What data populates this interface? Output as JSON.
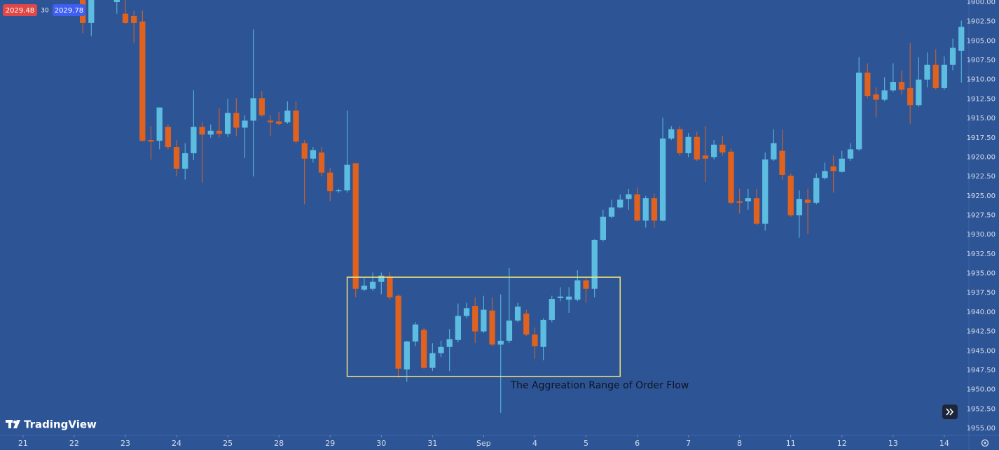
{
  "chart_data": {
    "type": "candlestick",
    "badges": {
      "bid": "2029.48",
      "spread": "30",
      "ask": "2029.78"
    },
    "brand": "TradingView",
    "y_inverted": true,
    "up_color": "#e0621e",
    "down_color": "#5cbde0",
    "xlim": [
      -2.7,
      110.8
    ],
    "ylim": [
      1900,
      1955
    ],
    "xticks": [
      {
        "value": 0,
        "label": "21"
      },
      {
        "value": 6,
        "label": "22"
      },
      {
        "value": 12,
        "label": "23"
      },
      {
        "value": 18,
        "label": "24"
      },
      {
        "value": 24,
        "label": "25"
      },
      {
        "value": 30,
        "label": "28"
      },
      {
        "value": 36,
        "label": "29"
      },
      {
        "value": 42,
        "label": "30"
      },
      {
        "value": 48,
        "label": "31"
      },
      {
        "value": 54,
        "label": "Sep"
      },
      {
        "value": 60,
        "label": "4"
      },
      {
        "value": 66,
        "label": "5"
      },
      {
        "value": 72,
        "label": "6"
      },
      {
        "value": 78,
        "label": "7"
      },
      {
        "value": 84,
        "label": "8"
      },
      {
        "value": 90,
        "label": "11"
      },
      {
        "value": 96,
        "label": "12"
      },
      {
        "value": 102,
        "label": "13"
      },
      {
        "value": 108,
        "label": "14"
      }
    ],
    "yticks": [
      {
        "value": 1900,
        "label": "1900.00"
      },
      {
        "value": 1902.5,
        "label": "1902.50"
      },
      {
        "value": 1905,
        "label": "1905.00"
      },
      {
        "value": 1907.5,
        "label": "1907.50"
      },
      {
        "value": 1910,
        "label": "1910.00"
      },
      {
        "value": 1912.5,
        "label": "1912.50"
      },
      {
        "value": 1915,
        "label": "1915.00"
      },
      {
        "value": 1917.5,
        "label": "1917.50"
      },
      {
        "value": 1920,
        "label": "1920.00"
      },
      {
        "value": 1922.5,
        "label": "1922.50"
      },
      {
        "value": 1925,
        "label": "1925.00"
      },
      {
        "value": 1927.5,
        "label": "1927.50"
      },
      {
        "value": 1930,
        "label": "1930.00"
      },
      {
        "value": 1932.5,
        "label": "1932.50"
      },
      {
        "value": 1935,
        "label": "1935.00"
      },
      {
        "value": 1937.5,
        "label": "1937.50"
      },
      {
        "value": 1940,
        "label": "1940.00"
      },
      {
        "value": 1942.5,
        "label": "1942.50"
      },
      {
        "value": 1945,
        "label": "1945.00"
      },
      {
        "value": 1947.5,
        "label": "1947.50"
      },
      {
        "value": 1950,
        "label": "1950.00"
      },
      {
        "value": 1952.5,
        "label": "1952.50"
      },
      {
        "value": 1955,
        "label": "1955.00"
      }
    ],
    "highlight": {
      "xlim": [
        38,
        70
      ],
      "ylim": [
        1935.5,
        1948.3
      ],
      "color": "#f2e47a",
      "label": "The Aggreation Range of Order Flow"
    },
    "x": [
      7,
      8,
      11,
      12,
      13,
      14,
      15,
      16,
      17,
      18,
      19,
      20,
      21,
      22,
      23,
      24,
      25,
      26,
      27,
      28,
      29,
      30,
      31,
      32,
      33,
      34,
      35,
      36,
      37,
      38,
      39,
      40,
      41,
      42,
      43,
      44,
      45,
      46,
      47,
      48,
      49,
      50,
      51,
      52,
      53,
      54,
      55,
      56,
      57,
      58,
      59,
      60,
      61,
      62,
      63,
      64,
      65,
      66,
      67,
      68,
      69,
      70,
      71,
      72,
      73,
      74,
      75,
      76,
      77,
      78,
      79,
      80,
      81,
      82,
      83,
      84,
      85,
      86,
      87,
      88,
      89,
      90,
      91,
      92,
      93,
      94,
      95,
      96,
      97,
      98,
      99,
      100,
      101,
      102,
      103,
      104,
      105,
      106,
      107,
      108,
      109,
      110
    ],
    "ohlc": [
      [
        1899.7,
        1904.0,
        1899.5,
        1902.7
      ],
      [
        1902.7,
        1904.4,
        1899.5,
        1899.7
      ],
      [
        1900.0,
        1901.5,
        1899.5,
        1899.7
      ],
      [
        1901.5,
        1902.8,
        1899.5,
        1902.7
      ],
      [
        1901.8,
        1905.3,
        1901.1,
        1902.7
      ],
      [
        1902.5,
        1918.0,
        1901.1,
        1917.9
      ],
      [
        1917.8,
        1920.3,
        1916.0,
        1918.0
      ],
      [
        1917.9,
        1919.0,
        1913.6,
        1913.6
      ],
      [
        1916.1,
        1919.0,
        1915.8,
        1918.7
      ],
      [
        1918.7,
        1922.5,
        1917.8,
        1921.5
      ],
      [
        1921.5,
        1922.9,
        1918.2,
        1919.5
      ],
      [
        1919.5,
        1920.4,
        1911.4,
        1916.1
      ],
      [
        1916.1,
        1923.3,
        1915.5,
        1917.1
      ],
      [
        1917.1,
        1917.5,
        1915.8,
        1916.6
      ],
      [
        1916.6,
        1917.5,
        1913.7,
        1917.0
      ],
      [
        1917.0,
        1917.4,
        1912.5,
        1914.3
      ],
      [
        1914.3,
        1917.3,
        1912.4,
        1916.2
      ],
      [
        1916.2,
        1920.1,
        1914.6,
        1915.3
      ],
      [
        1915.3,
        1922.5,
        1903.5,
        1912.4
      ],
      [
        1912.4,
        1914.8,
        1911.5,
        1914.6
      ],
      [
        1915.3,
        1917.3,
        1914.6,
        1915.5
      ],
      [
        1915.4,
        1915.9,
        1914.2,
        1915.7
      ],
      [
        1915.5,
        1915.7,
        1912.8,
        1914.0
      ],
      [
        1914.0,
        1918.2,
        1912.8,
        1918.0
      ],
      [
        1918.2,
        1926.1,
        1917.8,
        1920.2
      ],
      [
        1920.2,
        1920.7,
        1918.7,
        1919.1
      ],
      [
        1919.4,
        1922.5,
        1918.7,
        1922.0
      ],
      [
        1922.0,
        1925.7,
        1921.4,
        1924.4
      ],
      [
        1924.4,
        1924.6,
        1924.1,
        1924.3
      ],
      [
        1924.3,
        1924.6,
        1914.0,
        1921.0
      ],
      [
        1920.8,
        1938.1,
        1920.8,
        1937.0
      ],
      [
        1937.1,
        1937.3,
        1935.6,
        1936.6
      ],
      [
        1937.0,
        1937.3,
        1934.9,
        1936.1
      ],
      [
        1936.1,
        1937.7,
        1934.9,
        1935.3
      ],
      [
        1935.4,
        1938.4,
        1934.8,
        1938.1
      ],
      [
        1937.9,
        1948.5,
        1937.7,
        1947.3
      ],
      [
        1947.4,
        1949.0,
        1943.7,
        1943.8
      ],
      [
        1943.8,
        1944.4,
        1941.3,
        1941.6
      ],
      [
        1942.3,
        1947.3,
        1942.0,
        1947.2
      ],
      [
        1947.2,
        1947.6,
        1944.0,
        1945.3
      ],
      [
        1945.3,
        1945.8,
        1943.7,
        1944.5
      ],
      [
        1944.5,
        1947.6,
        1942.2,
        1943.5
      ],
      [
        1943.6,
        1943.9,
        1938.9,
        1940.5
      ],
      [
        1940.5,
        1940.8,
        1938.8,
        1939.5
      ],
      [
        1939.2,
        1944.0,
        1938.1,
        1942.5
      ],
      [
        1942.5,
        1942.7,
        1937.9,
        1939.7
      ],
      [
        1939.8,
        1944.4,
        1938.1,
        1944.2
      ],
      [
        1944.2,
        1953.0,
        1937.7,
        1943.7
      ],
      [
        1943.7,
        1944.0,
        1934.3,
        1941.1
      ],
      [
        1941.1,
        1941.3,
        1938.8,
        1939.3
      ],
      [
        1940.2,
        1943.1,
        1939.7,
        1942.9
      ],
      [
        1942.9,
        1946.0,
        1942.0,
        1944.4
      ],
      [
        1944.5,
        1946.2,
        1940.8,
        1941.0
      ],
      [
        1941.0,
        1941.3,
        1937.9,
        1938.3
      ],
      [
        1938.2,
        1938.6,
        1936.8,
        1938.0
      ],
      [
        1938.4,
        1940.1,
        1936.8,
        1938.0
      ],
      [
        1938.4,
        1938.6,
        1934.6,
        1935.9
      ],
      [
        1935.9,
        1938.8,
        1935.5,
        1937.0
      ],
      [
        1937.0,
        1938.1,
        1930.6,
        1930.7
      ],
      [
        1930.7,
        1930.9,
        1926.8,
        1927.7
      ],
      [
        1927.7,
        1927.9,
        1925.5,
        1926.5
      ],
      [
        1926.5,
        1926.6,
        1924.8,
        1925.5
      ],
      [
        1925.4,
        1926.8,
        1924.1,
        1924.8
      ],
      [
        1924.8,
        1928.3,
        1923.9,
        1928.2
      ],
      [
        1928.2,
        1929.1,
        1925.0,
        1925.3
      ],
      [
        1925.3,
        1929.1,
        1924.7,
        1928.2
      ],
      [
        1928.2,
        1928.3,
        1914.9,
        1917.6
      ],
      [
        1917.6,
        1917.8,
        1916.0,
        1916.4
      ],
      [
        1916.4,
        1919.8,
        1916.0,
        1919.5
      ],
      [
        1919.5,
        1920.0,
        1916.9,
        1917.4
      ],
      [
        1917.4,
        1920.5,
        1916.7,
        1920.3
      ],
      [
        1919.8,
        1923.2,
        1916.0,
        1920.2
      ],
      [
        1920.0,
        1920.3,
        1917.8,
        1918.4
      ],
      [
        1918.4,
        1919.8,
        1917.3,
        1919.4
      ],
      [
        1919.3,
        1926.1,
        1918.9,
        1925.9
      ],
      [
        1925.7,
        1927.3,
        1924.1,
        1925.9
      ],
      [
        1925.7,
        1926.8,
        1924.1,
        1925.3
      ],
      [
        1925.3,
        1928.8,
        1924.1,
        1928.6
      ],
      [
        1928.6,
        1929.5,
        1919.4,
        1920.3
      ],
      [
        1920.3,
        1920.5,
        1916.4,
        1918.2
      ],
      [
        1919.2,
        1922.9,
        1916.5,
        1922.3
      ],
      [
        1922.4,
        1927.7,
        1922.1,
        1927.5
      ],
      [
        1927.5,
        1930.4,
        1924.3,
        1925.4
      ],
      [
        1925.5,
        1929.9,
        1924.1,
        1925.9
      ],
      [
        1925.9,
        1926.1,
        1922.1,
        1922.7
      ],
      [
        1922.7,
        1922.9,
        1920.7,
        1921.8
      ],
      [
        1921.2,
        1924.6,
        1919.8,
        1921.8
      ],
      [
        1921.9,
        1922.0,
        1919.2,
        1920.2
      ],
      [
        1920.2,
        1920.5,
        1918.2,
        1919.0
      ],
      [
        1919.0,
        1919.2,
        1907.1,
        1909.1
      ],
      [
        1909.1,
        1912.4,
        1907.9,
        1912.1
      ],
      [
        1911.9,
        1914.9,
        1911.0,
        1912.6
      ],
      [
        1912.6,
        1912.8,
        1909.7,
        1911.4
      ],
      [
        1911.4,
        1911.6,
        1907.9,
        1910.3
      ],
      [
        1910.3,
        1911.9,
        1908.8,
        1911.3
      ],
      [
        1911.1,
        1915.7,
        1905.3,
        1913.3
      ],
      [
        1913.3,
        1913.5,
        1907.1,
        1910.0
      ],
      [
        1910.0,
        1911.0,
        1906.5,
        1908.1
      ],
      [
        1908.1,
        1911.3,
        1906.1,
        1911.1
      ],
      [
        1911.1,
        1911.3,
        1907.0,
        1908.1
      ],
      [
        1908.1,
        1908.8,
        1904.7,
        1905.9
      ],
      [
        1906.3,
        1910.4,
        1902.4,
        1903.2
      ]
    ]
  }
}
